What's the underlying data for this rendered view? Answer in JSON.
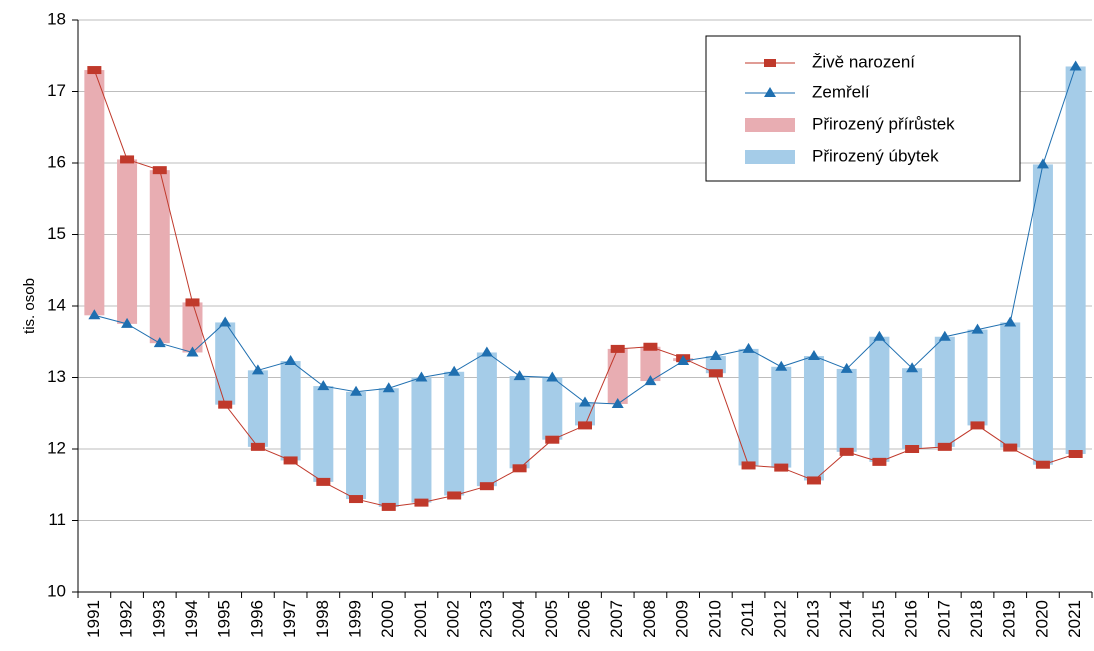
{
  "chart_data": {
    "type": "line",
    "y_label": "tis. osob",
    "categories": [
      "1991",
      "1992",
      "1993",
      "1994",
      "1995",
      "1996",
      "1997",
      "1998",
      "1999",
      "2000",
      "2001",
      "2002",
      "2003",
      "2004",
      "2005",
      "2006",
      "2007",
      "2008",
      "2009",
      "2010",
      "2011",
      "2012",
      "2013",
      "2014",
      "2015",
      "2016",
      "2017",
      "2018",
      "2019",
      "2020",
      "2021"
    ],
    "series": [
      {
        "name": "Živě narození",
        "color": "#c0392b",
        "marker": "square",
        "values": [
          17.3,
          16.05,
          15.9,
          14.05,
          12.62,
          12.03,
          11.84,
          11.54,
          11.3,
          11.19,
          11.25,
          11.35,
          11.48,
          11.73,
          12.13,
          12.33,
          13.4,
          13.43,
          13.27,
          13.06,
          11.77,
          11.74,
          11.56,
          11.96,
          11.82,
          12.0,
          12.03,
          12.33,
          12.02,
          11.78,
          11.93
        ]
      },
      {
        "name": "Zemřelí",
        "color": "#1f6fb0",
        "marker": "triangle",
        "values": [
          13.87,
          13.75,
          13.48,
          13.35,
          13.77,
          13.1,
          13.23,
          12.88,
          12.8,
          12.85,
          13.0,
          13.08,
          13.35,
          13.02,
          13.0,
          12.65,
          12.63,
          12.95,
          13.23,
          13.3,
          13.4,
          13.15,
          13.3,
          13.12,
          13.57,
          13.13,
          13.57,
          13.67,
          13.77,
          15.98,
          17.35
        ]
      }
    ],
    "difference_bars": [
      {
        "name": "Přirozený přírůstek",
        "color": "#e8adb2"
      },
      {
        "name": "Přirozený úbytek",
        "color": "#a5cce8"
      }
    ],
    "ylim": [
      10,
      18
    ],
    "yticks": [
      10,
      11,
      12,
      13,
      14,
      15,
      16,
      17,
      18
    ],
    "grid": true,
    "legend": "top-right"
  }
}
